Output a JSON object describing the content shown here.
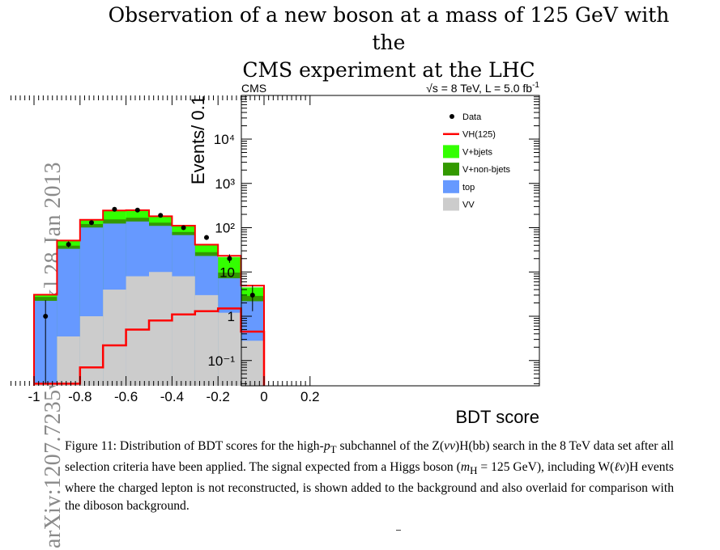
{
  "paper": {
    "title_line1": "Observation of a new boson at a mass of 125 GeV with the",
    "title_line2": "CMS experiment at the LHC",
    "arxiv_id": "arXiv:1207.7235v2  [hep-ex]  28 Jan 2013"
  },
  "caption": {
    "label": "Figure 11:",
    "text_a": "Distribution of BDT scores for the high-",
    "pt_sub": "T",
    "text_b": " subchannel of the Z(",
    "text_c": ")H(bb) search in the 8 TeV data set after all selection criteria have been applied. The signal expected from a Higgs boson (",
    "mh_sub": "H",
    "text_d": " = 125 GeV), including W(",
    "text_e": ")H events where the charged lepton is not reconstructed, is shown added to the background and also overlaid for comparison with the diboson background."
  },
  "chart_data": {
    "type": "bar",
    "style": "stacked-histogram",
    "experiment_label": "CMS",
    "energy_label": "√s = 8 TeV, L = 5.0 fb",
    "energy_label_sup": "-1",
    "xlabel": "BDT score",
    "ylabel": "Events/ 0.1",
    "xlim": [
      -1.1,
      0.2
    ],
    "ylim": [
      0.03,
      100000
    ],
    "yscale": "log",
    "x_ticks": [
      "-1",
      "-0.8",
      "-0.6",
      "-0.4",
      "-0.2",
      "0",
      "0.2"
    ],
    "y_ticks": [
      "10⁻¹",
      "1",
      "10",
      "10²",
      "10³",
      "10⁴"
    ],
    "bin_edges": [
      -1.0,
      -0.9,
      -0.8,
      -0.7,
      -0.6,
      -0.5,
      -0.4,
      -0.3,
      -0.2,
      -0.1,
      0.0
    ],
    "series": [
      {
        "name": "VV",
        "color": "#cccccc",
        "kind": "stack",
        "values": [
          0.03,
          0.35,
          1.0,
          4.0,
          8.0,
          10.0,
          8.0,
          3.0,
          1.2,
          0.28
        ]
      },
      {
        "name": "top",
        "color": "#6699ff",
        "kind": "stack",
        "values": [
          2.2,
          33.0,
          100.0,
          120.0,
          130.0,
          100.0,
          60.0,
          20.0,
          6.0,
          1.9
        ]
      },
      {
        "name": "V+non-bjets",
        "color": "#339900",
        "kind": "stack",
        "values": [
          0.5,
          6.0,
          20.0,
          30.0,
          30.0,
          20.0,
          12.0,
          5.0,
          2.5,
          0.7
        ]
      },
      {
        "name": "V+bjets",
        "color": "#33ff00",
        "kind": "stack",
        "values": [
          0.3,
          12.0,
          30.0,
          90.0,
          80.0,
          50.0,
          30.0,
          12.0,
          12.0,
          1.6
        ]
      },
      {
        "name": "VH(125)",
        "color": "#ff0000",
        "kind": "overlay",
        "values": [
          0.03,
          0.03,
          0.07,
          0.22,
          0.5,
          0.8,
          1.1,
          1.3,
          1.5,
          0.45
        ]
      }
    ],
    "data_points": {
      "name": "Data",
      "x": [
        -0.95,
        -0.85,
        -0.75,
        -0.65,
        -0.55,
        -0.45,
        -0.35,
        -0.25,
        -0.15,
        -0.05
      ],
      "y": [
        1.0,
        42,
        130,
        260,
        250,
        190,
        100,
        60,
        20,
        3.0
      ],
      "y_low": [
        0.03,
        36,
        119,
        244,
        235,
        177,
        91,
        53,
        16,
        1.3
      ],
      "y_high": [
        2.3,
        49,
        141,
        276,
        266,
        204,
        110,
        68,
        25,
        5
      ]
    },
    "legend": {
      "placement": "top-right",
      "entries": [
        {
          "label": "Data",
          "marker": "point",
          "color": "#000000"
        },
        {
          "label": "VH(125)",
          "marker": "line",
          "color": "#ff0000"
        },
        {
          "label": "V+bjets",
          "marker": "box",
          "color": "#33ff00"
        },
        {
          "label": "V+non-bjets",
          "marker": "box",
          "color": "#339900"
        },
        {
          "label": "top",
          "marker": "box",
          "color": "#6699ff"
        },
        {
          "label": "VV",
          "marker": "box",
          "color": "#cccccc"
        }
      ]
    }
  }
}
